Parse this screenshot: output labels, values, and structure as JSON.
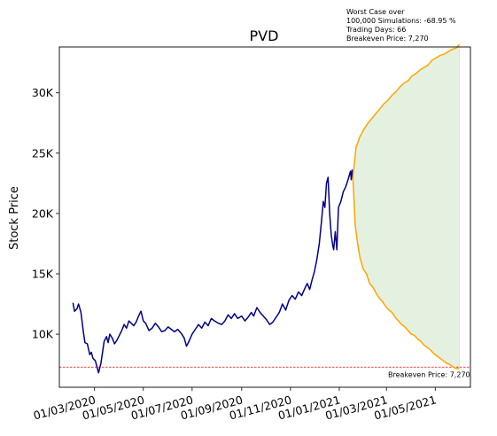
{
  "chart_data": {
    "type": "line",
    "title": "PVD",
    "ylabel": "Stock Price",
    "xlabel": "",
    "ylim": [
      5600,
      33800
    ],
    "xlim": [
      "2020-01-17",
      "2021-06-14"
    ],
    "y_ticks": [
      {
        "value": 10000,
        "label": "10K"
      },
      {
        "value": 15000,
        "label": "15K"
      },
      {
        "value": 20000,
        "label": "20K"
      },
      {
        "value": 25000,
        "label": "25K"
      },
      {
        "value": 30000,
        "label": "30K"
      }
    ],
    "x_ticks": [
      {
        "value": "2020-03-01",
        "label": "01/03/2020"
      },
      {
        "value": "2020-05-01",
        "label": "01/05/2020"
      },
      {
        "value": "2020-07-01",
        "label": "01/07/2020"
      },
      {
        "value": "2020-09-01",
        "label": "01/09/2020"
      },
      {
        "value": "2020-11-01",
        "label": "01/11/2020"
      },
      {
        "value": "2021-01-01",
        "label": "01/01/2021"
      },
      {
        "value": "2021-03-01",
        "label": "01/03/2021"
      },
      {
        "value": "2021-05-01",
        "label": "01/05/2021"
      }
    ],
    "grid": false,
    "series": [
      {
        "color": "#00008b",
        "points": [
          [
            "2020-02-03",
            12600
          ],
          [
            "2020-02-05",
            11900
          ],
          [
            "2020-02-08",
            12100
          ],
          [
            "2020-02-10",
            12500
          ],
          [
            "2020-02-13",
            11800
          ],
          [
            "2020-02-16",
            10200
          ],
          [
            "2020-02-18",
            9300
          ],
          [
            "2020-02-21",
            9200
          ],
          [
            "2020-02-24",
            8300
          ],
          [
            "2020-02-26",
            8500
          ],
          [
            "2020-02-28",
            8000
          ],
          [
            "2020-03-02",
            7800
          ],
          [
            "2020-03-04",
            7300
          ],
          [
            "2020-03-06",
            6800
          ],
          [
            "2020-03-09",
            7600
          ],
          [
            "2020-03-11",
            8500
          ],
          [
            "2020-03-13",
            9400
          ],
          [
            "2020-03-16",
            9800
          ],
          [
            "2020-03-18",
            9300
          ],
          [
            "2020-03-20",
            10000
          ],
          [
            "2020-03-23",
            9700
          ],
          [
            "2020-03-26",
            9200
          ],
          [
            "2020-03-29",
            9500
          ],
          [
            "2020-04-01",
            9900
          ],
          [
            "2020-04-04",
            10300
          ],
          [
            "2020-04-07",
            10800
          ],
          [
            "2020-04-10",
            10500
          ],
          [
            "2020-04-13",
            11100
          ],
          [
            "2020-04-16",
            10900
          ],
          [
            "2020-04-19",
            10700
          ],
          [
            "2020-04-22",
            11000
          ],
          [
            "2020-04-25",
            11500
          ],
          [
            "2020-04-28",
            11900
          ],
          [
            "2020-05-01",
            11100
          ],
          [
            "2020-05-04",
            10900
          ],
          [
            "2020-05-08",
            10300
          ],
          [
            "2020-05-12",
            10500
          ],
          [
            "2020-05-16",
            10900
          ],
          [
            "2020-05-20",
            10600
          ],
          [
            "2020-05-24",
            10200
          ],
          [
            "2020-05-28",
            10300
          ],
          [
            "2020-06-01",
            10600
          ],
          [
            "2020-06-05",
            10400
          ],
          [
            "2020-06-09",
            10200
          ],
          [
            "2020-06-13",
            10400
          ],
          [
            "2020-06-17",
            10100
          ],
          [
            "2020-06-21",
            9700
          ],
          [
            "2020-06-24",
            9000
          ],
          [
            "2020-06-27",
            9400
          ],
          [
            "2020-07-01",
            10000
          ],
          [
            "2020-07-05",
            10400
          ],
          [
            "2020-07-09",
            10800
          ],
          [
            "2020-07-13",
            10500
          ],
          [
            "2020-07-17",
            11000
          ],
          [
            "2020-07-21",
            10700
          ],
          [
            "2020-07-25",
            11300
          ],
          [
            "2020-07-29",
            11100
          ],
          [
            "2020-08-03",
            10900
          ],
          [
            "2020-08-07",
            10800
          ],
          [
            "2020-08-11",
            11100
          ],
          [
            "2020-08-15",
            11600
          ],
          [
            "2020-08-19",
            11300
          ],
          [
            "2020-08-23",
            11700
          ],
          [
            "2020-08-27",
            11300
          ],
          [
            "2020-09-01",
            11500
          ],
          [
            "2020-09-05",
            11100
          ],
          [
            "2020-09-09",
            11400
          ],
          [
            "2020-09-13",
            11800
          ],
          [
            "2020-09-16",
            11500
          ],
          [
            "2020-09-20",
            12200
          ],
          [
            "2020-09-24",
            11800
          ],
          [
            "2020-09-28",
            11500
          ],
          [
            "2020-10-02",
            11200
          ],
          [
            "2020-10-06",
            10800
          ],
          [
            "2020-10-10",
            11000
          ],
          [
            "2020-10-14",
            11400
          ],
          [
            "2020-10-18",
            11800
          ],
          [
            "2020-10-22",
            12500
          ],
          [
            "2020-10-26",
            12000
          ],
          [
            "2020-10-30",
            12800
          ],
          [
            "2020-11-03",
            13200
          ],
          [
            "2020-11-07",
            12900
          ],
          [
            "2020-11-11",
            13500
          ],
          [
            "2020-11-15",
            13200
          ],
          [
            "2020-11-19",
            13800
          ],
          [
            "2020-11-22",
            14200
          ],
          [
            "2020-11-25",
            13700
          ],
          [
            "2020-11-28",
            14500
          ],
          [
            "2020-12-01",
            15200
          ],
          [
            "2020-12-04",
            16200
          ],
          [
            "2020-12-07",
            17500
          ],
          [
            "2020-12-10",
            19500
          ],
          [
            "2020-12-12",
            21000
          ],
          [
            "2020-12-14",
            20500
          ],
          [
            "2020-12-16",
            22500
          ],
          [
            "2020-12-18",
            23000
          ],
          [
            "2020-12-20",
            20000
          ],
          [
            "2020-12-22",
            18200
          ],
          [
            "2020-12-24",
            17300
          ],
          [
            "2020-12-25",
            17000
          ],
          [
            "2020-12-27",
            18500
          ],
          [
            "2020-12-29",
            17000
          ],
          [
            "2020-12-31",
            20500
          ],
          [
            "2021-01-03",
            21000
          ],
          [
            "2021-01-06",
            21800
          ],
          [
            "2021-01-09",
            22200
          ],
          [
            "2021-01-12",
            22800
          ],
          [
            "2021-01-15",
            23500
          ],
          [
            "2021-01-16",
            22800
          ],
          [
            "2021-01-17",
            23600
          ],
          [
            "2021-01-18",
            23000
          ]
        ]
      },
      {
        "color": "#ffa500",
        "band": "upper",
        "points": [
          [
            "2021-01-18",
            23000
          ],
          [
            "2021-01-22",
            25500
          ],
          [
            "2021-01-27",
            26400
          ],
          [
            "2021-02-01",
            27000
          ],
          [
            "2021-02-06",
            27500
          ],
          [
            "2021-02-11",
            27900
          ],
          [
            "2021-02-16",
            28300
          ],
          [
            "2021-02-21",
            28700
          ],
          [
            "2021-02-26",
            29100
          ],
          [
            "2021-03-03",
            29400
          ],
          [
            "2021-03-08",
            29800
          ],
          [
            "2021-03-13",
            30100
          ],
          [
            "2021-03-18",
            30500
          ],
          [
            "2021-03-23",
            30800
          ],
          [
            "2021-03-28",
            31000
          ],
          [
            "2021-04-02",
            31400
          ],
          [
            "2021-04-07",
            31600
          ],
          [
            "2021-04-12",
            31900
          ],
          [
            "2021-04-17",
            32100
          ],
          [
            "2021-04-22",
            32300
          ],
          [
            "2021-04-27",
            32700
          ],
          [
            "2021-05-02",
            32900
          ],
          [
            "2021-05-07",
            33100
          ],
          [
            "2021-05-12",
            33200
          ],
          [
            "2021-05-17",
            33400
          ],
          [
            "2021-05-22",
            33600
          ],
          [
            "2021-05-27",
            33700
          ],
          [
            "2021-05-31",
            34000
          ]
        ]
      },
      {
        "color": "#ffa500",
        "band": "lower",
        "points": [
          [
            "2021-01-18",
            23000
          ],
          [
            "2021-01-21",
            19000
          ],
          [
            "2021-01-24",
            17500
          ],
          [
            "2021-01-27",
            16300
          ],
          [
            "2021-01-31",
            15400
          ],
          [
            "2021-02-04",
            15000
          ],
          [
            "2021-02-08",
            14200
          ],
          [
            "2021-02-12",
            13900
          ],
          [
            "2021-02-16",
            13400
          ],
          [
            "2021-02-20",
            13000
          ],
          [
            "2021-02-24",
            12700
          ],
          [
            "2021-02-28",
            12300
          ],
          [
            "2021-03-04",
            12000
          ],
          [
            "2021-03-08",
            11800
          ],
          [
            "2021-03-12",
            11400
          ],
          [
            "2021-03-16",
            11100
          ],
          [
            "2021-03-20",
            10800
          ],
          [
            "2021-03-24",
            10600
          ],
          [
            "2021-03-28",
            10300
          ],
          [
            "2021-04-01",
            10000
          ],
          [
            "2021-04-05",
            9900
          ],
          [
            "2021-04-09",
            9600
          ],
          [
            "2021-04-13",
            9400
          ],
          [
            "2021-04-17",
            9100
          ],
          [
            "2021-04-21",
            8900
          ],
          [
            "2021-04-25",
            8700
          ],
          [
            "2021-04-29",
            8400
          ],
          [
            "2021-05-03",
            8200
          ],
          [
            "2021-05-07",
            8000
          ],
          [
            "2021-05-11",
            7800
          ],
          [
            "2021-05-15",
            7600
          ],
          [
            "2021-05-19",
            7500
          ],
          [
            "2021-05-23",
            7300
          ],
          [
            "2021-05-27",
            7150
          ],
          [
            "2021-05-31",
            7150
          ]
        ]
      }
    ],
    "shaded_band": {
      "color": "#e4f1e0",
      "between": [
        "upper",
        "lower"
      ]
    },
    "breakeven_line": {
      "value": 7270,
      "color": "#ff0000",
      "label": "Breakeven Price: 7,270"
    },
    "annotation": {
      "lines": [
        "Worst Case over",
        "100,000 Simulations: -68.95 %",
        "Trading Days: 66",
        "Breakeven Price: 7,270"
      ]
    }
  }
}
